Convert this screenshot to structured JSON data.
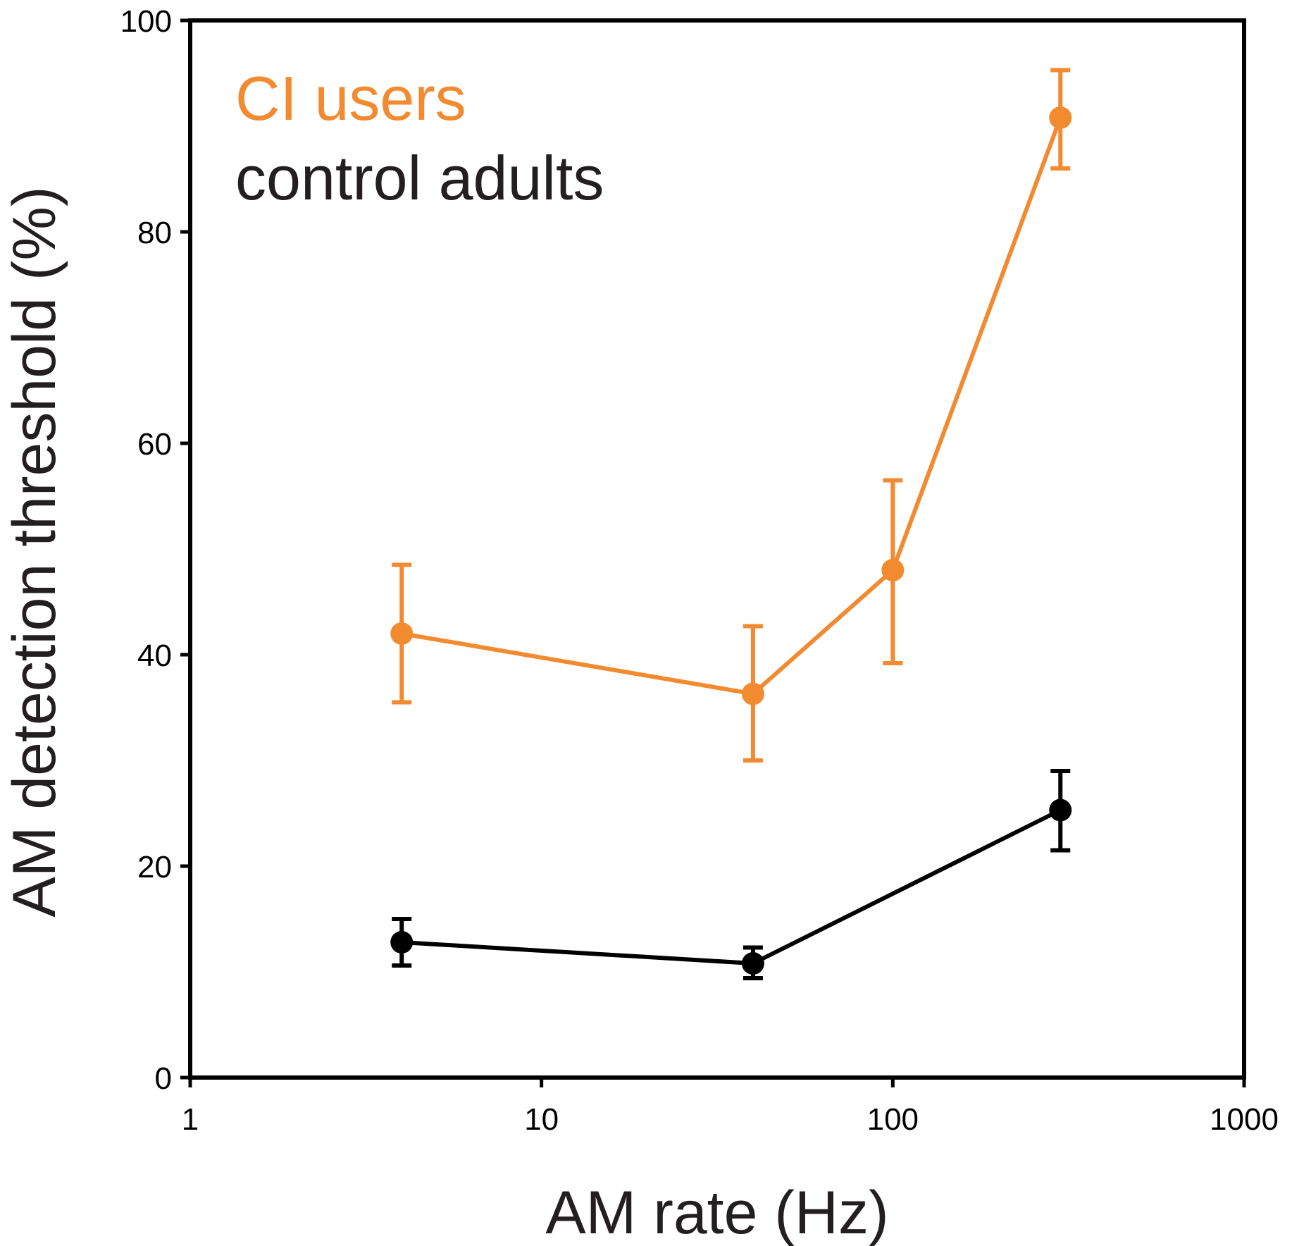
{
  "chart_data": {
    "type": "line",
    "title": "",
    "xlabel": "AM rate (Hz)",
    "ylabel": "AM detection threshold (%)",
    "xscale": "log",
    "xlim": [
      1,
      1000
    ],
    "ylim": [
      0,
      100
    ],
    "xticks": [
      1,
      10,
      100,
      1000
    ],
    "xtick_labels": [
      "1",
      "10",
      "100",
      "1000"
    ],
    "yticks": [
      0,
      20,
      40,
      60,
      80,
      100
    ],
    "ytick_labels": [
      "0",
      "20",
      "40",
      "60",
      "80",
      "100"
    ],
    "grid": false,
    "legend_position": "top-left",
    "series": [
      {
        "name": "CI users",
        "color": "#f28a30",
        "x": [
          4,
          40,
          100,
          300
        ],
        "y": [
          42,
          36.3,
          48,
          90.8
        ],
        "err_low": [
          35.5,
          30,
          39.2,
          86
        ],
        "err_high": [
          48.5,
          42.7,
          56.5,
          95.3
        ]
      },
      {
        "name": "control adults",
        "color": "#000000",
        "x": [
          4,
          40,
          300
        ],
        "y": [
          12.8,
          10.8,
          25.3
        ],
        "err_low": [
          10.6,
          9.4,
          21.5
        ],
        "err_high": [
          15,
          12.3,
          29
        ]
      }
    ]
  }
}
